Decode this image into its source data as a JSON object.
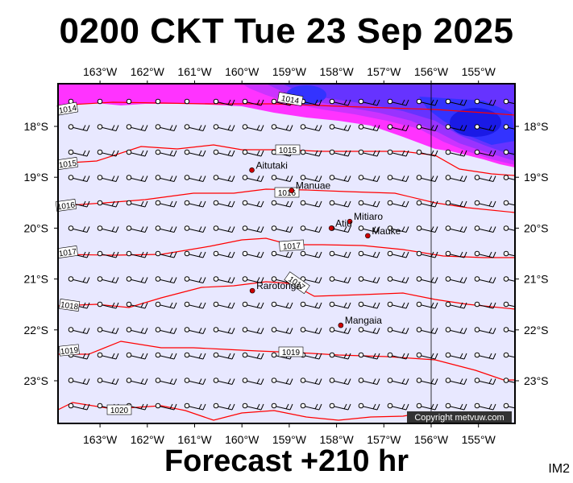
{
  "title": "0200 CKT Tue 23 Sep 2025",
  "footer": "Forecast +210 hr",
  "corner_label": "IM2",
  "copyright": "Copyright metvuw.com",
  "lon_labels": [
    "163°W",
    "162°W",
    "161°W",
    "160°W",
    "159°W",
    "158°W",
    "157°W",
    "156°W",
    "155°W"
  ],
  "lat_labels": [
    "18°S",
    "19°S",
    "20°S",
    "21°S",
    "22°S",
    "23°S"
  ],
  "places": [
    {
      "name": "Aitutaki",
      "lon": -159.79,
      "lat": -18.86
    },
    {
      "name": "Manuae",
      "lon": -158.95,
      "lat": -19.26
    },
    {
      "name": "Mitiaro",
      "lon": -157.72,
      "lat": -19.87
    },
    {
      "name": "Atiu",
      "lon": -158.11,
      "lat": -20.0
    },
    {
      "name": "Mauke",
      "lon": -157.34,
      "lat": -20.15
    },
    {
      "name": "Rarotonga",
      "lon": -159.78,
      "lat": -21.23
    },
    {
      "name": "Mangaia",
      "lon": -157.91,
      "lat": -21.91
    }
  ],
  "isobar_labels": [
    "1014",
    "1015",
    "1015",
    "1016",
    "1016",
    "1017",
    "1017",
    "1017",
    "1018",
    "1018",
    "1019",
    "1019",
    "1020"
  ],
  "colors": {
    "sea": "#e8e8ff",
    "frame": "#000000",
    "isobar": "#ff0000",
    "low": "#ff00ff",
    "place_dot": "#cc0000"
  }
}
